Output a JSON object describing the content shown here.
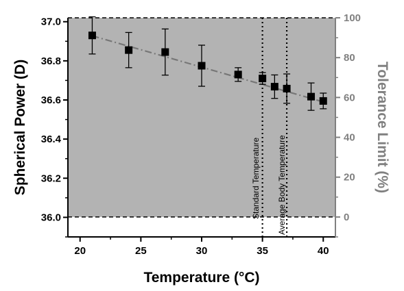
{
  "chart_data": {
    "type": "scatter",
    "xlabel": "Temperature (°C)",
    "ylabel": "Spherical Power (D)",
    "y2label": "Tolerance Limit (%)",
    "xlim": [
      19,
      41
    ],
    "ylim": [
      35.9,
      37.02
    ],
    "y2lim": [
      -10,
      100
    ],
    "x_ticks": [
      "20",
      "25",
      "30",
      "35",
      "40"
    ],
    "y_ticks": [
      "36.0",
      "36.2",
      "36.4",
      "36.6",
      "36.8",
      "37.0"
    ],
    "y2_ticks": [
      "0",
      "20",
      "40",
      "60",
      "80",
      "100"
    ],
    "tolerance_band": {
      "lower_percent": 0,
      "upper_percent": 100,
      "color": "#b3b3b3"
    },
    "series": [
      {
        "x": [
          21,
          24,
          27,
          30,
          33,
          35,
          36,
          37,
          39,
          40
        ],
        "y": [
          36.93,
          36.855,
          36.845,
          36.775,
          36.73,
          36.71,
          36.668,
          36.658,
          36.617,
          36.595
        ],
        "error": [
          0.095,
          0.09,
          0.118,
          0.105,
          0.035,
          0.03,
          0.06,
          0.075,
          0.07,
          0.04
        ],
        "marker": "square",
        "color": "#000000"
      }
    ],
    "trend_line": {
      "x": [
        21,
        40
      ],
      "y": [
        36.928,
        36.59
      ],
      "style": "dash-dot",
      "color": "#777777"
    },
    "annotations": [
      {
        "text": "Standard Temperature",
        "x": 35
      },
      {
        "text": "Average Body Temperature",
        "x": 37
      }
    ],
    "colors": {
      "band": "#b3b3b3",
      "right_axis": "#808080",
      "trend": "#777777",
      "marker": "#000000"
    },
    "grid": false
  }
}
